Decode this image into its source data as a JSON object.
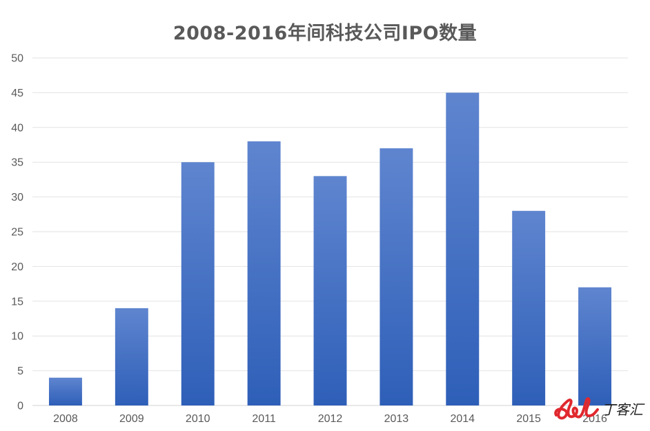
{
  "chart_data": {
    "type": "bar",
    "title": "2008-2016年间科技公司IPO数量",
    "xlabel": "",
    "ylabel": "",
    "categories": [
      "2008",
      "2009",
      "2010",
      "2011",
      "2012",
      "2013",
      "2014",
      "2015",
      "2016"
    ],
    "values": [
      4,
      14,
      35,
      38,
      33,
      37,
      45,
      28,
      17
    ],
    "ylim": [
      0,
      50
    ],
    "yticks": [
      0,
      5,
      10,
      15,
      20,
      25,
      30,
      35,
      40,
      45,
      50
    ],
    "grid": true,
    "legend": "none",
    "bar_color_top": "#5f85cf",
    "bar_color_bottom": "#2e5fb8"
  },
  "watermark": {
    "text": "丁客汇",
    "color": "#e0282e"
  }
}
